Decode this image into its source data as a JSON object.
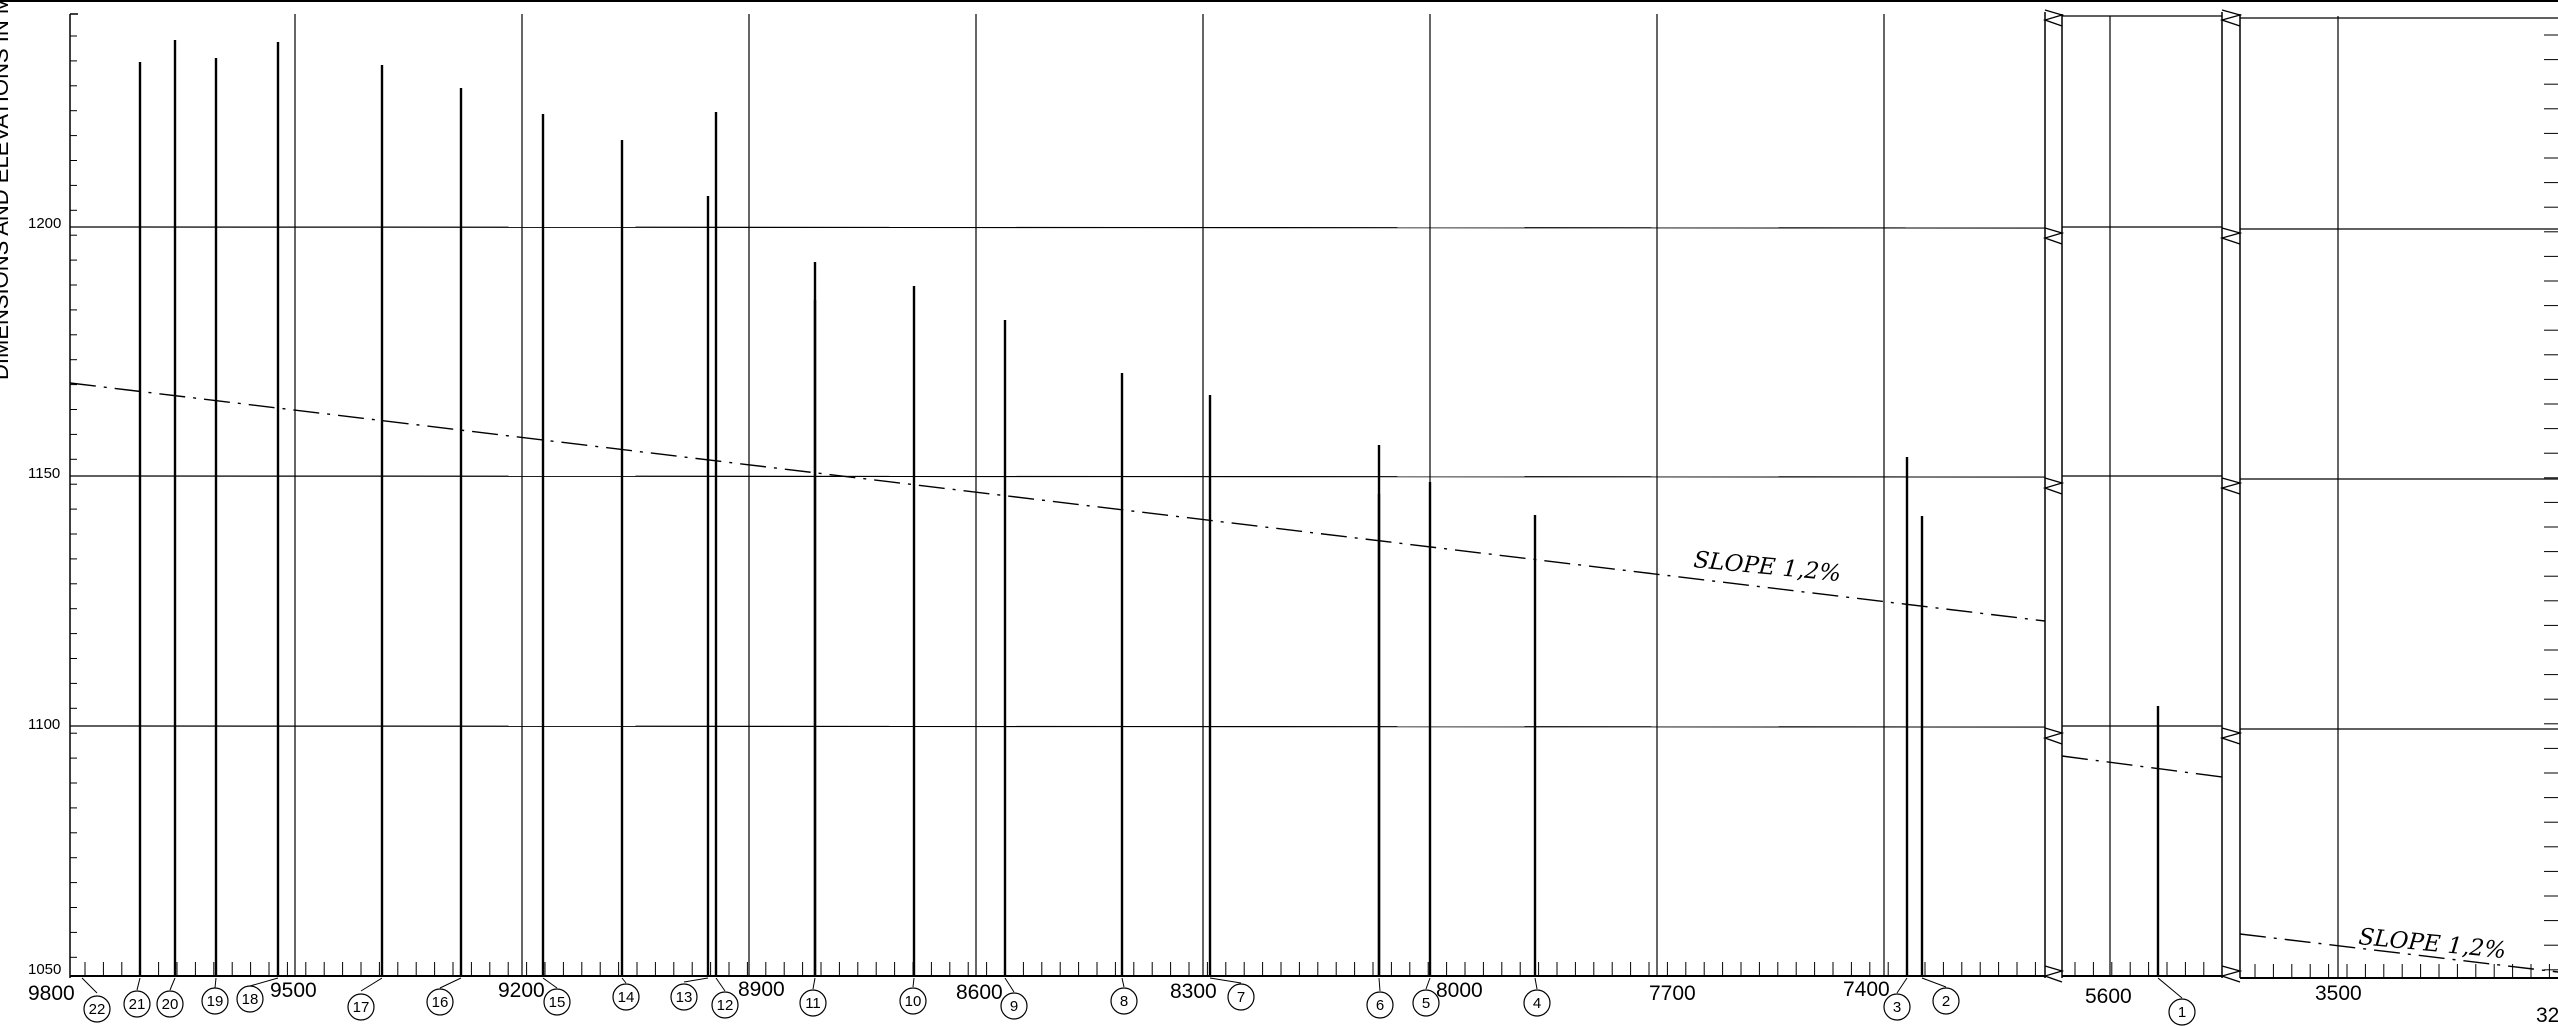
{
  "y_axis_label": "DIMENSIONS AND ELEVATIONS IN METERS",
  "elevation_ticks": [
    "1200",
    "1150",
    "1100",
    "1050"
  ],
  "chainage_ticks": [
    "9800",
    "9500",
    "9200",
    "8900",
    "8600",
    "8300",
    "8000",
    "7700",
    "7400",
    "5600",
    "3500",
    "32"
  ],
  "slope_labels": [
    "SLOPE 1,2%",
    "SLOPE 1,2%"
  ],
  "callouts": [
    "22",
    "21",
    "20",
    "19",
    "18",
    "17",
    "16",
    "15",
    "14",
    "13",
    "12",
    "11",
    "10",
    "9",
    "8",
    "7",
    "6",
    "5",
    "4",
    "3",
    "2",
    "1"
  ]
}
